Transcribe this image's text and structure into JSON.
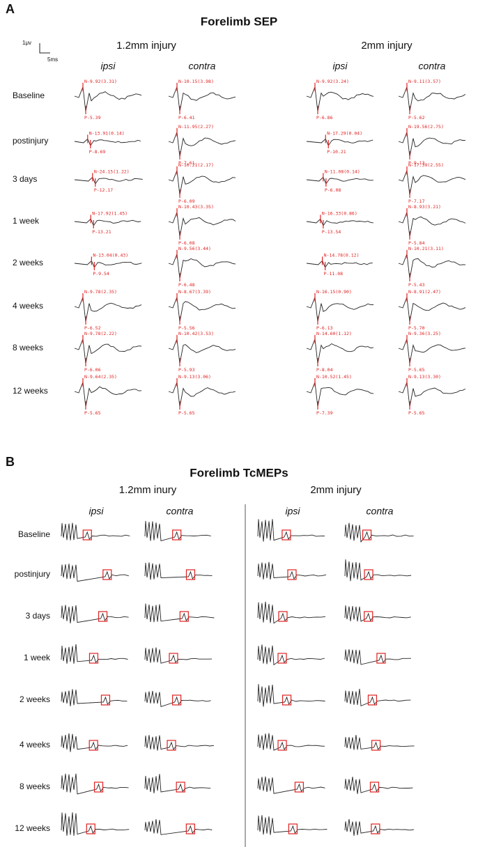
{
  "panel_a": {
    "label": "A",
    "title": "Forelimb SEP",
    "scale_bar": {
      "amplitude": "1μv",
      "time": "5ms"
    },
    "groups": [
      {
        "name": "1.2mm injury",
        "columns": [
          "ipsi",
          "contra"
        ]
      },
      {
        "name": "2mm injury",
        "columns": [
          "ipsi",
          "contra"
        ]
      }
    ],
    "rows": [
      "Baseline",
      "postinjury",
      "3 days",
      "1 week",
      "2 weeks",
      "4 weeks",
      "8 weeks",
      "12 weeks"
    ],
    "cells": [
      [
        {
          "n": "N-9.92(3.31)",
          "p": "P-5.39"
        },
        {
          "n": "N-13.91(0.14)",
          "p": "P-8.69"
        },
        {
          "n": "N-24.15(1.22)",
          "p": "P-12.17"
        },
        {
          "n": "N-17.92(1.45)",
          "p": "P-13.21"
        },
        {
          "n": "N-13.04(0.43)",
          "p": "P-9.54"
        },
        {
          "n": "N-9.78(2.35)",
          "p": "P-6.52"
        },
        {
          "n": "N-9.78(2.22)",
          "p": "P-6.06"
        },
        {
          "n": "N-9.64(2.35)",
          "p": "P-5.65"
        }
      ],
      [
        {
          "n": "N-10.15(3.98)",
          "p": "P-6.41"
        },
        {
          "n": "N-11.95(2.27)",
          "p": "P-7.61"
        },
        {
          "n": "N-10.21(2.17)",
          "p": "P-6.09"
        },
        {
          "n": "N-10.43(3.35)",
          "p": "P-6.08"
        },
        {
          "n": "N-9.56(3.44)",
          "p": "P-6.48"
        },
        {
          "n": "N-8.67(3.39)",
          "p": "P-5.56"
        },
        {
          "n": "N-10.42(3.53)",
          "p": "P-5.93"
        },
        {
          "n": "N-9.13(3.06)",
          "p": "P-5.65"
        }
      ],
      [
        {
          "n": "N-9.92(3.24)",
          "p": "P-6.86"
        },
        {
          "n": "N-17.29(0.04)",
          "p": "P-10.21"
        },
        {
          "n": "N-11.08(0.14)",
          "p": "P-6.08"
        },
        {
          "n": "N-16.33(0.86)",
          "p": "P-13.54"
        },
        {
          "n": "N-14.78(0.12)",
          "p": "P-11.08"
        },
        {
          "n": "N-16.15(0.90)",
          "p": "P-6.13"
        },
        {
          "n": "N-14.60(1.12)",
          "p": "P-8.04"
        },
        {
          "n": "N-10.52(1.45)",
          "p": "P-7.39"
        }
      ],
      [
        {
          "n": "N-9.11(3.57)",
          "p": "P-5.62"
        },
        {
          "n": "N-19.56(2.75)",
          "p": "P-9.13"
        },
        {
          "n": "N-17.39(2.55)",
          "p": "P-7.17"
        },
        {
          "n": "N-8.93(3.21)",
          "p": "P-5.84"
        },
        {
          "n": "N-10.21(3.11)",
          "p": "P-5.43"
        },
        {
          "n": "N-8.91(2.47)",
          "p": "P-5.70"
        },
        {
          "n": "N-9.36(3.25)",
          "p": "P-5.65"
        },
        {
          "n": "N-9.13(3.30)",
          "p": "P-5.65"
        }
      ]
    ]
  },
  "panel_b": {
    "label": "B",
    "title": "Forelimb TcMEPs",
    "groups": [
      {
        "name": "1.2mm inury",
        "columns": [
          "ipsi",
          "contra"
        ]
      },
      {
        "name": "2mm injury",
        "columns": [
          "ipsi",
          "contra"
        ]
      }
    ],
    "rows": [
      "Baseline",
      "postinjury",
      "3 days",
      "1 week",
      "2 weeks",
      "4 weeks",
      "8 weeks",
      "12 weeks"
    ]
  }
}
